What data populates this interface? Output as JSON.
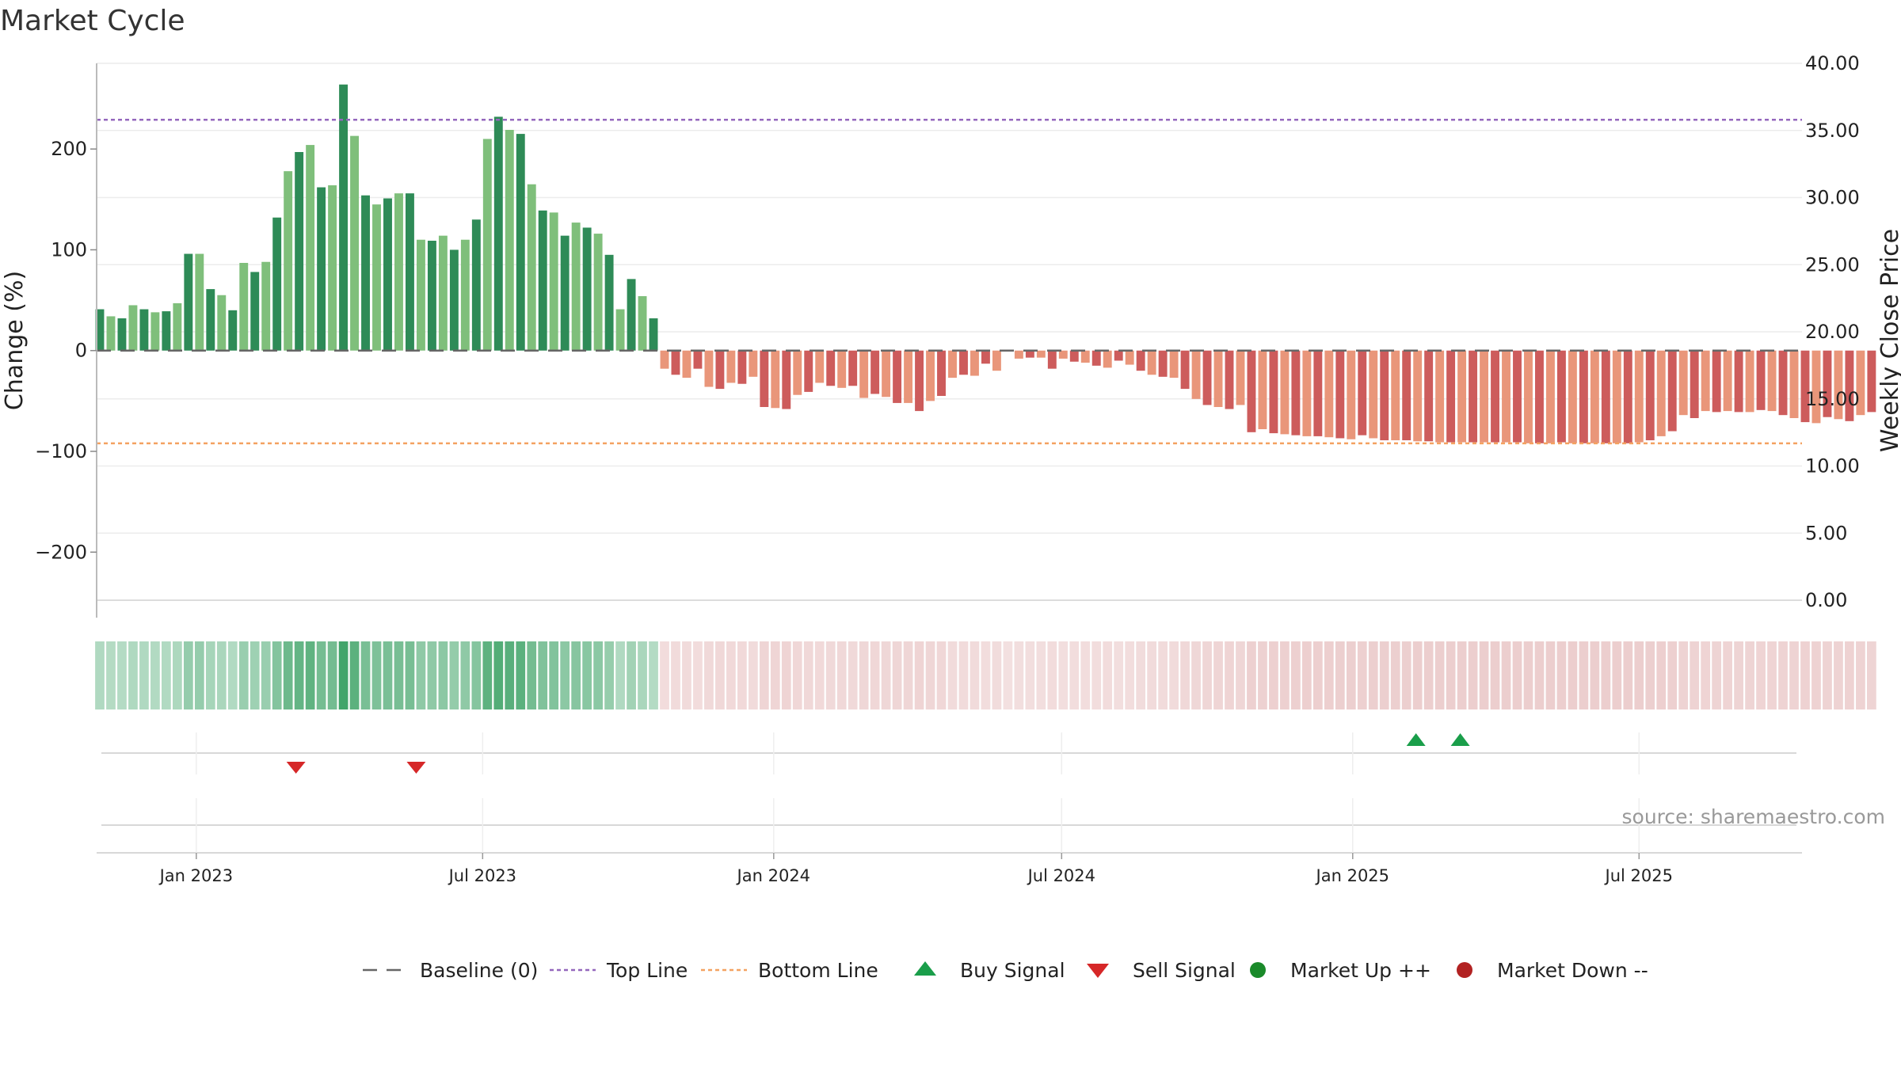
{
  "chart_data": {
    "type": "bar",
    "title": "Market Cycle",
    "ylabel_left": "Change (%)",
    "ylabel_right": "Weekly Close Price",
    "ylim_left": [
      -265,
      285
    ],
    "yticks_left": [
      -200,
      -100,
      0,
      100,
      200
    ],
    "yticks_left_labels": [
      "−200",
      "−100",
      "0",
      "100",
      "200"
    ],
    "ylim_right": [
      0,
      40
    ],
    "yticks_right": [
      0,
      5,
      10,
      15,
      20,
      25,
      30,
      35,
      40
    ],
    "yticks_right_labels": [
      "0.00",
      "5.00",
      "10.00",
      "15.00",
      "20.00",
      "25.00",
      "30.00",
      "35.00",
      "40.00"
    ],
    "x_start": "2022-10-30",
    "x_end": "2025-10-12",
    "xticks": [
      {
        "date": "2023-01-01",
        "label": "Jan 2023"
      },
      {
        "date": "2023-07-01",
        "label": "Jul 2023"
      },
      {
        "date": "2024-01-01",
        "label": "Jan 2024"
      },
      {
        "date": "2024-07-01",
        "label": "Jul 2024"
      },
      {
        "date": "2025-01-01",
        "label": "Jan 2025"
      },
      {
        "date": "2025-07-01",
        "label": "Jul 2025"
      }
    ],
    "top_line": 229,
    "bottom_line": -92,
    "baseline": 0,
    "first_week": "2022-11-01",
    "week_days": 7,
    "values": [
      41,
      34,
      32,
      45,
      41,
      38,
      39,
      47,
      96,
      96,
      61,
      55,
      40,
      87,
      78,
      88,
      132,
      178,
      197,
      204,
      162,
      164,
      264,
      213,
      154,
      145,
      151,
      156,
      156,
      110,
      109,
      114,
      100,
      110,
      130,
      210,
      232,
      219,
      215,
      165,
      139,
      137,
      114,
      127,
      122,
      116,
      95,
      41,
      71,
      54,
      32,
      -18,
      -24,
      -27,
      -18,
      -36,
      -38,
      -32,
      -33,
      -26,
      -56,
      -57,
      -58,
      -44,
      -41,
      -32,
      -35,
      -37,
      -35,
      -47,
      -43,
      -46,
      -52,
      -52,
      -60,
      -50,
      -45,
      -27,
      -24,
      -25,
      -13,
      -20,
      -1,
      -8,
      -7,
      -7,
      -18,
      -8,
      -11,
      -12,
      -15,
      -17,
      -10,
      -14,
      -20,
      -24,
      -26,
      -27,
      -38,
      -48,
      -54,
      -56,
      -58,
      -54,
      -81,
      -78,
      -82,
      -83,
      -84,
      -85,
      -85,
      -86,
      -87,
      -88,
      -84,
      -87,
      -89,
      -89,
      -89,
      -90,
      -90,
      -91,
      -91,
      -91,
      -91,
      -91,
      -91,
      -91,
      -91,
      -92,
      -92,
      -92,
      -91,
      -92,
      -92,
      -92,
      -92,
      -92,
      -92,
      -91,
      -89,
      -85,
      -80,
      -64,
      -67,
      -60,
      -61,
      -60,
      -61,
      -61,
      -59,
      -60,
      -64,
      -67,
      -71,
      -72,
      -66,
      -68,
      -70,
      -64,
      -61
    ],
    "bar_shading_pattern": "alternate dark/light by week",
    "signals": {
      "buy": [
        "2025-02-10",
        "2025-03-10"
      ],
      "sell": [
        "2023-03-05",
        "2023-05-20"
      ]
    },
    "colors": {
      "up_dark": "#2e8b57",
      "up_light": "#7fbf7b",
      "down_dark": "#cd5c5c",
      "down_light": "#e9967a",
      "top_line": "#9467bd",
      "bottom_line": "#f4a261",
      "baseline": "#666666",
      "buy": "#1a9e4a",
      "sell": "#d62728",
      "market_up": "#1a8a2a",
      "market_down": "#b22222"
    },
    "legend": [
      {
        "key": "baseline",
        "label": "Baseline (0)"
      },
      {
        "key": "top",
        "label": "Top Line"
      },
      {
        "key": "bottom",
        "label": "Bottom Line"
      },
      {
        "key": "buy",
        "label": "Buy Signal"
      },
      {
        "key": "sell",
        "label": "Sell Signal"
      },
      {
        "key": "up",
        "label": "Market Up ++"
      },
      {
        "key": "down",
        "label": "Market Down --"
      }
    ],
    "legend_position": "bottom-center",
    "source": "source: sharemaestro.com"
  }
}
